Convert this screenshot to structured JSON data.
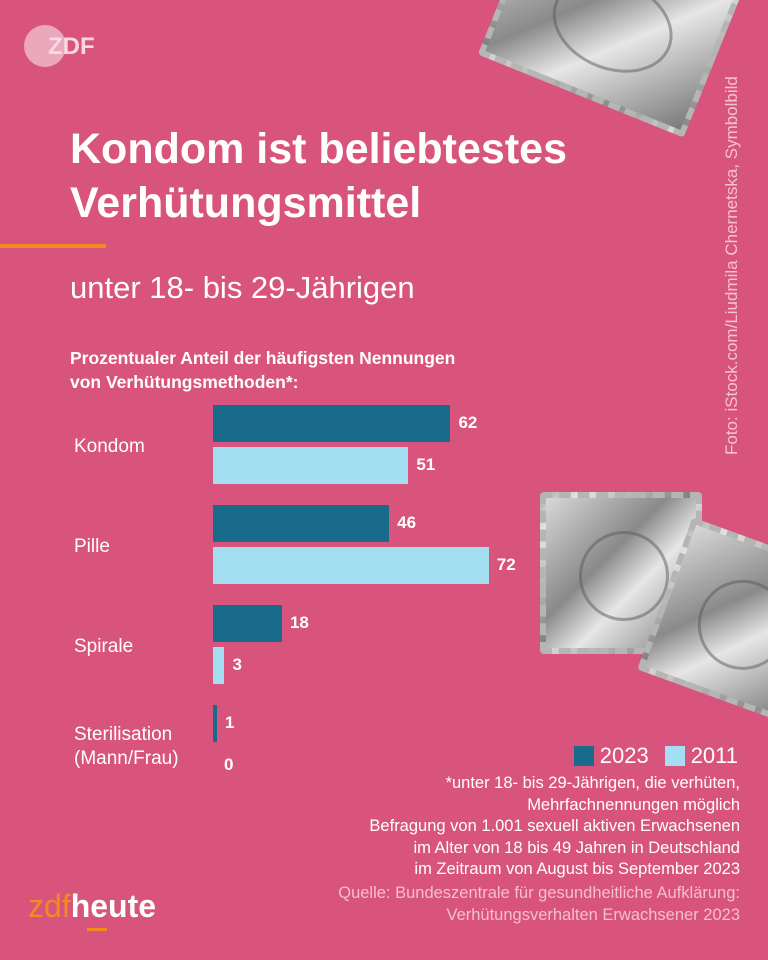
{
  "header": {
    "logo": "ZDF",
    "title_lines": [
      "Kondom ist beliebtestes",
      "Verhütungsmittel"
    ],
    "subtitle": "unter 18- bis 29-Jährigen",
    "photo_credit": "Foto: iStock.com/Liudmila Chernetska, Symbolbild"
  },
  "chart_data": {
    "type": "bar",
    "orientation": "horizontal",
    "title": "Prozentualer Anteil der häufigsten Nennungen von Verhütungsmethoden*:",
    "title_lines": [
      "Prozentualer Anteil der häufigsten Nennungen",
      "von Verhütungsmethoden*:"
    ],
    "categories": [
      "Kondom",
      "Pille",
      "Spirale",
      "Sterilisation (Mann/Frau)"
    ],
    "category_lines": [
      [
        "Kondom"
      ],
      [
        "Pille"
      ],
      [
        "Spirale"
      ],
      [
        "Sterilisation",
        "(Mann/Frau)"
      ]
    ],
    "series": [
      {
        "name": "2023",
        "color": "#186b8a",
        "values": [
          62,
          46,
          18,
          1
        ]
      },
      {
        "name": "2011",
        "color": "#a3def1",
        "values": [
          51,
          72,
          3,
          0
        ]
      }
    ],
    "unit": "%",
    "legend": "bottom-right",
    "grid": false
  },
  "footer": {
    "notes": [
      "*unter 18- bis 29-Jährigen, die verhüten,",
      "Mehrfachnennungen möglich",
      "Befragung von 1.001 sexuell aktiven Erwachsenen",
      "im Alter von 18 bis 49 Jahren in Deutschland",
      "im Zeitraum von August bis September 2023"
    ],
    "source": [
      "Quelle: Bundeszentrale für gesundheitliche Aufklärung:",
      "Verhütungsverhalten Erwachsener 2023"
    ],
    "brand_a": "zdf",
    "brand_b": "heute"
  }
}
